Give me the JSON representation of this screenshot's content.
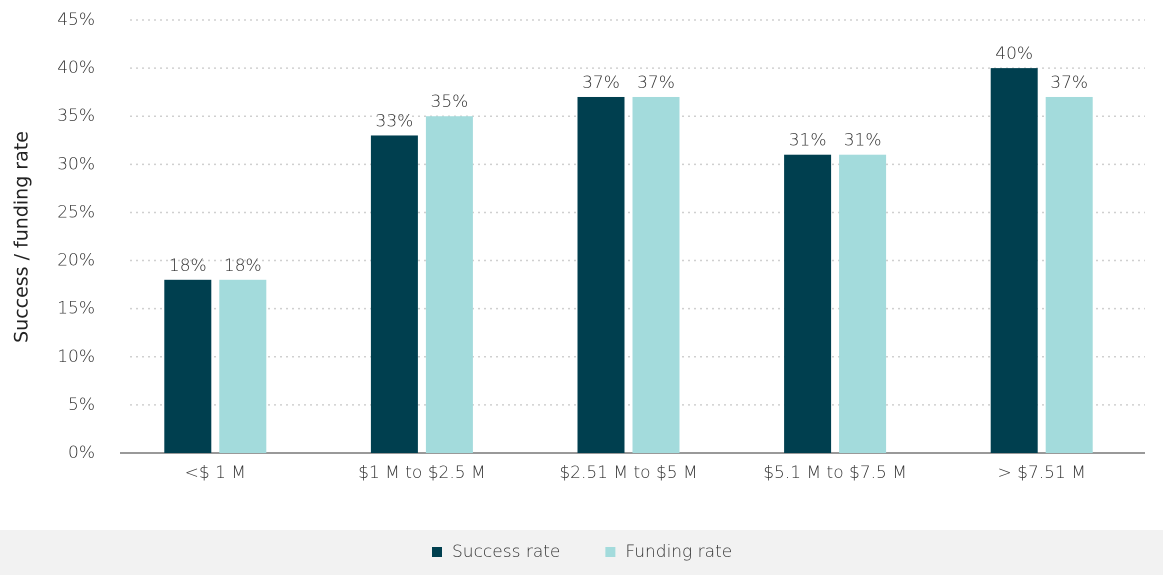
{
  "chart_data": {
    "type": "bar",
    "y_label": "Success / funding rate",
    "categories": [
      "<$ 1 M",
      "$1 M to $2.5 M",
      "$2.51 M to $5 M",
      "$5.1 M to $7.5 M",
      "> $7.51 M"
    ],
    "series": [
      {
        "name": "Success rate",
        "color": "#003f4f",
        "values": [
          18,
          33,
          37,
          31,
          40
        ],
        "value_labels": [
          "18%",
          "33%",
          "37%",
          "31%",
          "40%"
        ]
      },
      {
        "name": "Funding rate",
        "color": "#a3dbdc",
        "values": [
          18,
          35,
          37,
          31,
          37
        ],
        "value_labels": [
          "18%",
          "35%",
          "37%",
          "31%",
          "37%"
        ]
      }
    ],
    "ylim": [
      0,
      45
    ],
    "yticks": [
      {
        "value": 0,
        "label": "0%"
      },
      {
        "value": 5,
        "label": "5%"
      },
      {
        "value": 10,
        "label": "10%"
      },
      {
        "value": 15,
        "label": "15%"
      },
      {
        "value": 20,
        "label": "20%"
      },
      {
        "value": 25,
        "label": "25%"
      },
      {
        "value": 30,
        "label": "30%"
      },
      {
        "value": 35,
        "label": "35%"
      },
      {
        "value": 40,
        "label": "40%"
      },
      {
        "value": 45,
        "label": "45%"
      }
    ],
    "grid": true,
    "legend": "bottom"
  }
}
